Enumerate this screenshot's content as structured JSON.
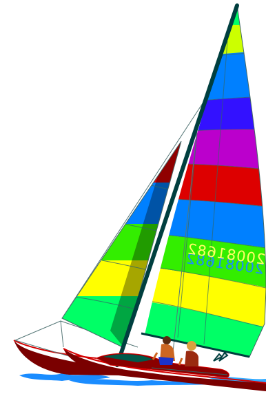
{
  "sail_numbers": {
    "front": "20081682",
    "back": "20081682"
  },
  "colors": {
    "mast": "#003f3f",
    "hull": "#7a0000",
    "hull_stripe": "#d40000",
    "deck": "#005a4a",
    "water": "#1a8cff",
    "band_green": "#00ff66",
    "band_lime": "#33ee00",
    "band_yellow": "#ffff00",
    "band_blue": "#0080ff",
    "band_red": "#dd0000",
    "band_purple": "#bb00cc",
    "band_violet": "#3311ff",
    "band_chartreuse": "#ccff00"
  }
}
